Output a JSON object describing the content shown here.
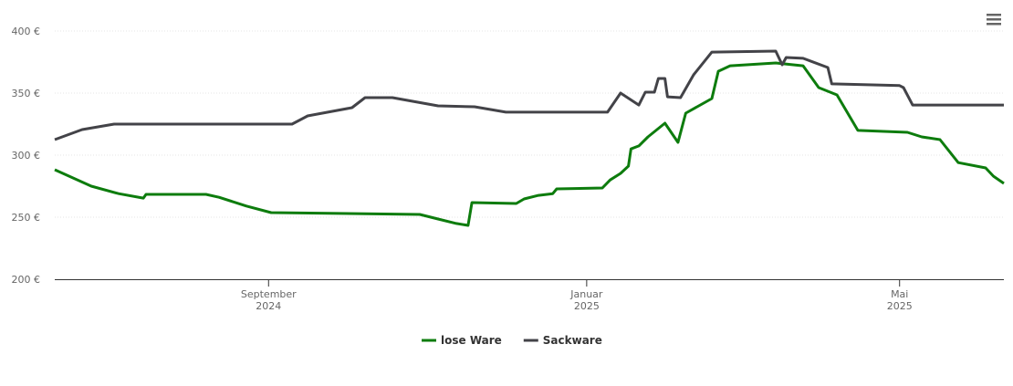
{
  "chart_data": {
    "type": "line",
    "xlim": [
      0,
      364
    ],
    "xticks": [
      {
        "value": 82,
        "label": "September 2024"
      },
      {
        "value": 204,
        "label": "Januar 2025"
      },
      {
        "value": 324,
        "label": "Mai 2025"
      }
    ],
    "ylim": [
      200,
      400
    ],
    "yticks": [
      {
        "value": 200,
        "label": "200 €"
      },
      {
        "value": 250,
        "label": "250 €"
      },
      {
        "value": 300,
        "label": "300 €"
      },
      {
        "value": 350,
        "label": "350 €"
      },
      {
        "value": 400,
        "label": "400 €"
      }
    ],
    "grid": true,
    "legend": "bottom",
    "series": [
      {
        "name": "lose Ware",
        "color": "#0d7c0d",
        "x": [
          0,
          14,
          24.5,
          34,
          35,
          58,
          63,
          73.5,
          83,
          140,
          147,
          154,
          158.5,
          160,
          177,
          180,
          185.5,
          191,
          192.5,
          210,
          213,
          217,
          220,
          221,
          224,
          227.5,
          234,
          239,
          242,
          252,
          254.5,
          259,
          276.5,
          287,
          293,
          300,
          308,
          327,
          332.5,
          339.5,
          346.5,
          357,
          360,
          364
        ],
        "values": [
          288.2,
          275,
          269,
          265.4,
          268.4,
          268.4,
          266,
          259,
          253.7,
          252.2,
          248.5,
          244.9,
          243.4,
          261.8,
          261,
          264.7,
          267.6,
          269,
          272.8,
          273.5,
          280,
          285.3,
          291.2,
          305,
          307.4,
          314.7,
          325.7,
          310.3,
          333.8,
          345.6,
          367.6,
          372,
          374.3,
          372,
          354.4,
          348.5,
          319.9,
          318.4,
          314.7,
          312.5,
          294,
          289.7,
          283,
          277.2
        ]
      },
      {
        "name": "Sackware",
        "color": "#434348",
        "x": [
          0,
          10.5,
          22.75,
          91,
          97,
          114,
          119,
          129.5,
          147,
          161,
          173,
          212,
          217,
          224,
          226.5,
          230,
          231.5,
          234,
          235,
          240,
          245,
          252,
          276.5,
          279,
          280.5,
          287,
          296.5,
          298,
          324,
          325.5,
          329,
          364
        ],
        "values": [
          312.5,
          320.6,
          325,
          325,
          331.6,
          338.2,
          346.3,
          346.3,
          339.7,
          339,
          334.6,
          334.6,
          350,
          340.4,
          350.7,
          350.7,
          361.8,
          361.8,
          347,
          346.3,
          364.7,
          383,
          383.8,
          372.8,
          378.7,
          378,
          370.6,
          357.4,
          356,
          354.4,
          340.4,
          340.4
        ]
      }
    ]
  }
}
